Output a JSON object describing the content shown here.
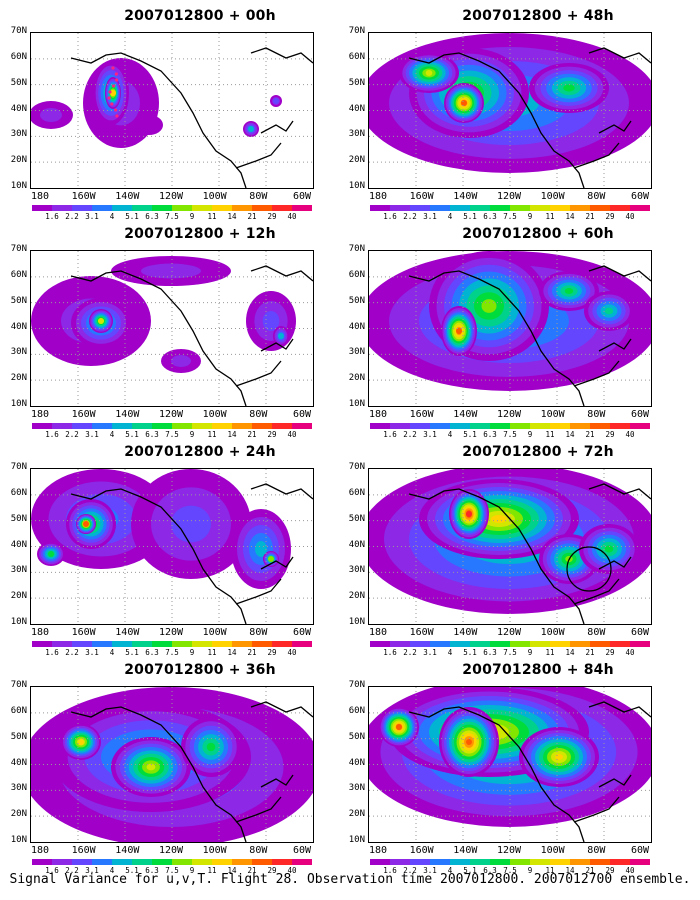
{
  "panels": [
    {
      "title": "2007012800 + 00h",
      "hour": 0
    },
    {
      "title": "2007012800 + 48h",
      "hour": 48
    },
    {
      "title": "2007012800 + 12h",
      "hour": 12
    },
    {
      "title": "2007012800 + 60h",
      "hour": 60
    },
    {
      "title": "2007012800 + 24h",
      "hour": 24
    },
    {
      "title": "2007012800 + 72h",
      "hour": 72
    },
    {
      "title": "2007012800 + 36h",
      "hour": 36
    },
    {
      "title": "2007012800 + 84h",
      "hour": 84
    }
  ],
  "lat_labels": [
    "70N",
    "60N",
    "50N",
    "40N",
    "30N",
    "20N",
    "10N"
  ],
  "lon_labels": [
    "180",
    "160W",
    "140W",
    "120W",
    "100W",
    "80W",
    "60W"
  ],
  "colorbar": {
    "labels": [
      "1.6",
      "2.2",
      "3.1",
      "4",
      "5.1",
      "6.3",
      "7.5",
      "9",
      "11",
      "14",
      "21",
      "29",
      "40"
    ],
    "colors": [
      "#a000c8",
      "#8c28e6",
      "#6446ff",
      "#2878ff",
      "#00b4d2",
      "#00d28c",
      "#00dc3c",
      "#82e600",
      "#d2e600",
      "#ffd200",
      "#ff9600",
      "#ff5a00",
      "#ff2828",
      "#e6007d"
    ]
  },
  "caption": "Signal Variance for u,v,T. Flight 28. Observation time 2007012800. 2007012700 ensemble."
}
